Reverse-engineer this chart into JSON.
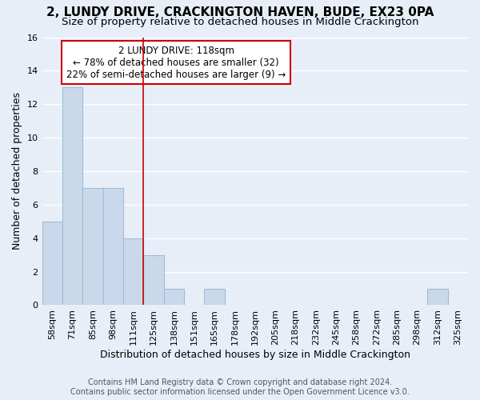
{
  "title": "2, LUNDY DRIVE, CRACKINGTON HAVEN, BUDE, EX23 0PA",
  "subtitle": "Size of property relative to detached houses in Middle Crackington",
  "xlabel": "Distribution of detached houses by size in Middle Crackington",
  "ylabel": "Number of detached properties",
  "footnote1": "Contains HM Land Registry data © Crown copyright and database right 2024.",
  "footnote2": "Contains public sector information licensed under the Open Government Licence v3.0.",
  "categories": [
    "58sqm",
    "71sqm",
    "85sqm",
    "98sqm",
    "111sqm",
    "125sqm",
    "138sqm",
    "151sqm",
    "165sqm",
    "178sqm",
    "192sqm",
    "205sqm",
    "218sqm",
    "232sqm",
    "245sqm",
    "258sqm",
    "272sqm",
    "285sqm",
    "298sqm",
    "312sqm",
    "325sqm"
  ],
  "values": [
    5,
    13,
    7,
    7,
    4,
    3,
    1,
    0,
    1,
    0,
    0,
    0,
    0,
    0,
    0,
    0,
    0,
    0,
    0,
    1,
    0
  ],
  "bar_color": "#c9d9eb",
  "bar_edge_color": "#a0bcd4",
  "property_line_x": 4.5,
  "property_line_color": "#cc0000",
  "annotation_text": "2 LUNDY DRIVE: 118sqm\n← 78% of detached houses are smaller (32)\n22% of semi-detached houses are larger (9) →",
  "annotation_box_color": "#ffffff",
  "annotation_box_edge_color": "#cc0000",
  "ylim": [
    0,
    16
  ],
  "yticks": [
    0,
    2,
    4,
    6,
    8,
    10,
    12,
    14,
    16
  ],
  "bg_color": "#e8eef8",
  "grid_color": "#ffffff",
  "title_fontsize": 11,
  "subtitle_fontsize": 9.5,
  "xlabel_fontsize": 9,
  "ylabel_fontsize": 9,
  "tick_fontsize": 8,
  "annotation_fontsize": 8.5,
  "footnote_fontsize": 7
}
